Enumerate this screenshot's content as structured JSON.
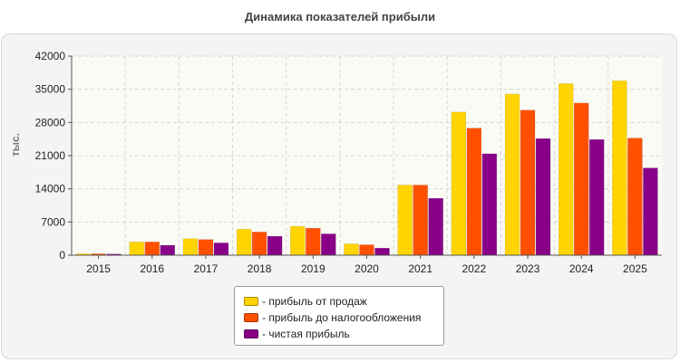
{
  "chart_data": {
    "type": "bar",
    "title": "Динамика показателей прибыли",
    "ylabel": "тыс.",
    "xlabel": "",
    "categories": [
      "2015",
      "2016",
      "2017",
      "2018",
      "2019",
      "2020",
      "2021",
      "2022",
      "2023",
      "2024",
      "2025"
    ],
    "ylim": [
      0,
      42000
    ],
    "yticks": [
      0,
      7000,
      14000,
      21000,
      28000,
      35000,
      42000
    ],
    "grid": true,
    "legend_position": "bottom-center",
    "series": [
      {
        "name": "- прибыль от продаж",
        "color": "#ffd400",
        "values": [
          300,
          2800,
          3500,
          5500,
          6100,
          2400,
          14800,
          30200,
          34000,
          36200,
          36800
        ]
      },
      {
        "name": "- прибыль до налогообложения",
        "color": "#ff5000",
        "values": [
          300,
          2800,
          3300,
          4900,
          5700,
          2200,
          14800,
          26800,
          30600,
          32100,
          24700
        ]
      },
      {
        "name": "- чистая прибыль",
        "color": "#880088",
        "values": [
          250,
          2100,
          2600,
          4000,
          4500,
          1500,
          12000,
          21400,
          24600,
          24400,
          18400
        ]
      }
    ]
  }
}
